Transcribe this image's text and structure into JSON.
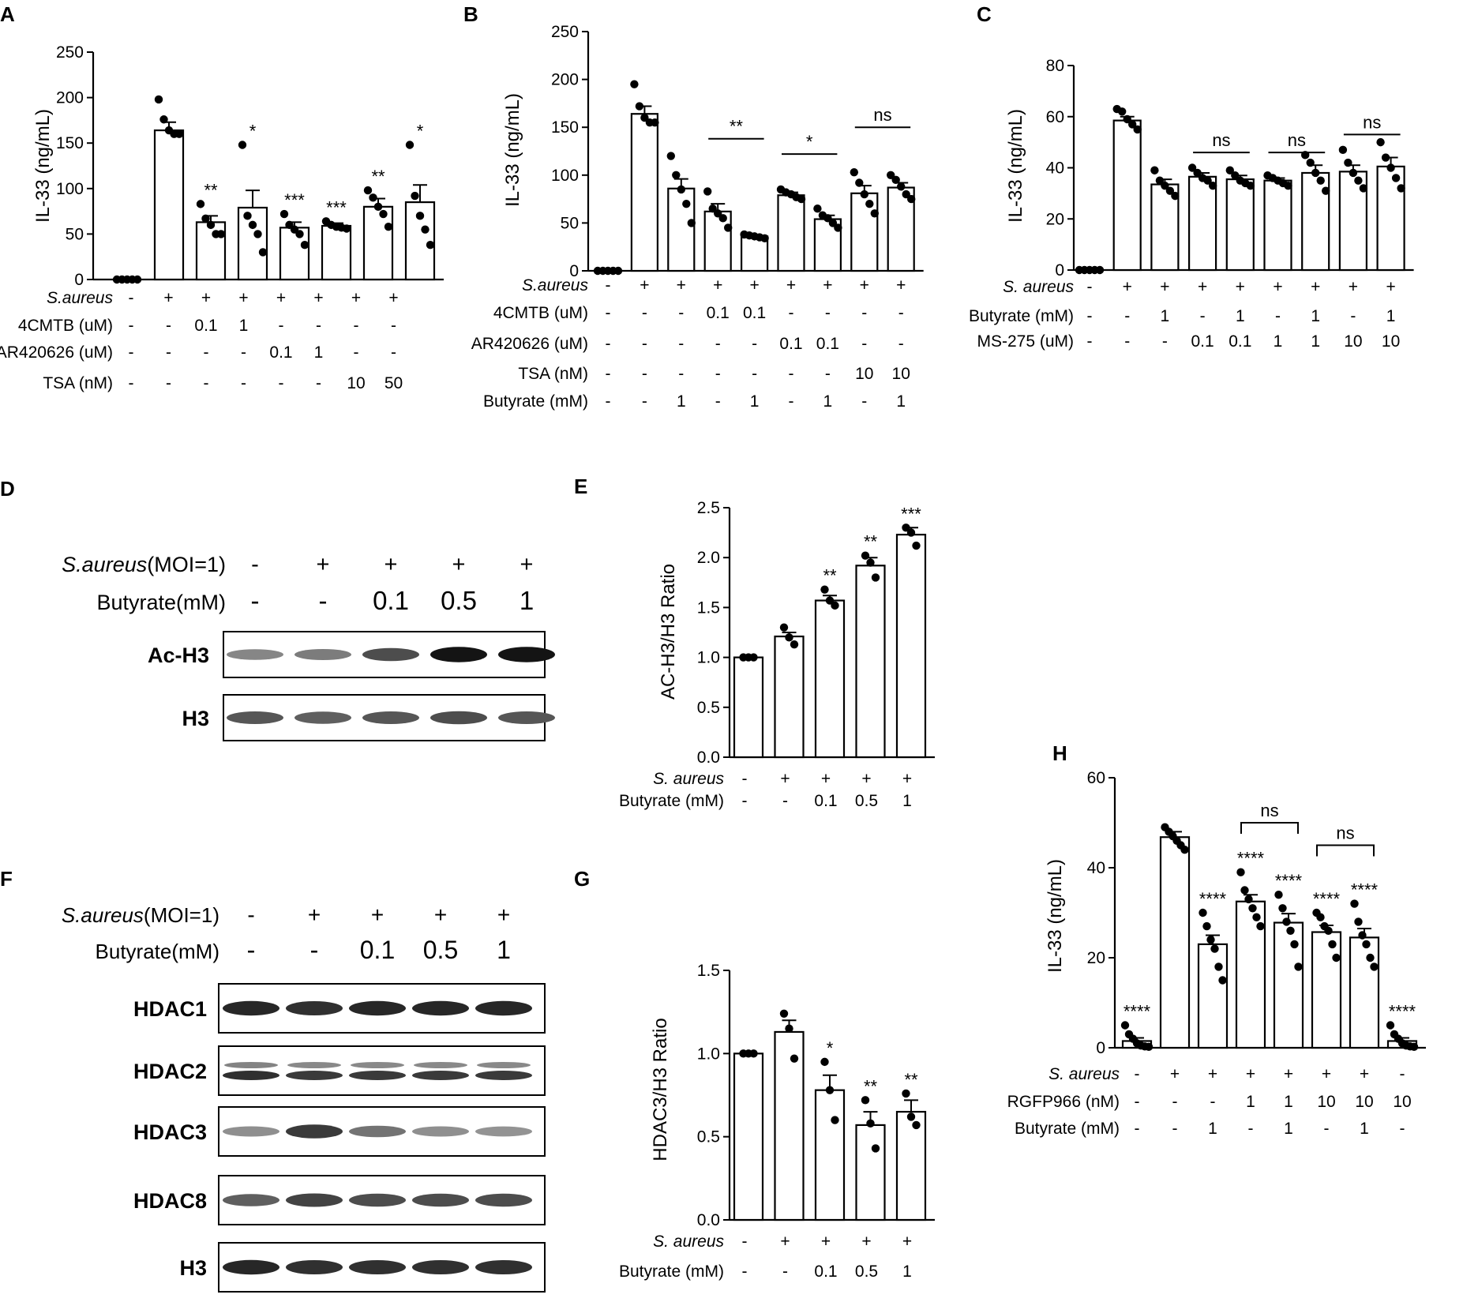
{
  "chart_data": [
    {
      "panel": "A",
      "type": "bar",
      "ylabel": "IL-33 (ng/mL)",
      "ylim": [
        0,
        250
      ],
      "yticks": [
        "0",
        "50",
        "100",
        "150",
        "200",
        "250"
      ],
      "values": [
        0,
        164,
        63,
        79,
        57,
        59,
        80,
        85
      ],
      "errors": [
        0,
        9,
        7,
        19,
        6,
        3,
        9,
        19
      ],
      "points": [
        [
          0,
          0,
          0,
          0,
          0
        ],
        [
          198,
          176,
          164,
          160,
          160
        ],
        [
          83,
          67,
          60,
          50,
          50
        ],
        [
          148,
          70,
          60,
          50,
          30
        ],
        [
          72,
          60,
          55,
          50,
          38
        ],
        [
          64,
          60,
          58,
          57,
          56
        ],
        [
          98,
          90,
          80,
          72,
          58
        ],
        [
          148,
          92,
          70,
          55,
          38
        ]
      ],
      "sig": [
        "",
        "",
        "**",
        "*",
        "***",
        "***",
        "**",
        "*"
      ],
      "brackets": [],
      "conditions": [
        {
          "label": "S.aureus",
          "italic": true,
          "values": [
            "-",
            "+",
            "+",
            "+",
            "+",
            "+",
            "+",
            "+"
          ]
        },
        {
          "label": "4CMTB (uM)",
          "italic": false,
          "values": [
            "-",
            "-",
            "0.1",
            "1",
            "-",
            "-",
            "-",
            "-"
          ]
        },
        {
          "label": "AR420626 (uM)",
          "italic": false,
          "values": [
            "-",
            "-",
            "-",
            "-",
            "0.1",
            "1",
            "-",
            "-"
          ]
        },
        {
          "label": "TSA (nM)",
          "italic": false,
          "values": [
            "-",
            "-",
            "-",
            "-",
            "-",
            "-",
            "10",
            "50"
          ]
        }
      ]
    },
    {
      "panel": "B",
      "type": "bar",
      "ylabel": "IL-33 (ng/mL)",
      "ylim": [
        0,
        250
      ],
      "yticks": [
        "0",
        "50",
        "100",
        "150",
        "200",
        "250"
      ],
      "values": [
        0,
        164,
        86,
        62,
        36,
        79,
        54,
        81,
        87
      ],
      "errors": [
        0,
        8,
        10,
        8,
        2,
        3,
        4,
        8,
        5
      ],
      "points": [
        [
          0,
          0,
          0,
          0,
          0
        ],
        [
          195,
          172,
          160,
          155,
          155
        ],
        [
          120,
          100,
          85,
          70,
          50
        ],
        [
          83,
          65,
          60,
          55,
          45
        ],
        [
          38,
          37,
          36,
          35,
          34
        ],
        [
          85,
          82,
          80,
          77,
          75
        ],
        [
          65,
          58,
          55,
          50,
          45
        ],
        [
          103,
          92,
          80,
          70,
          60
        ],
        [
          100,
          95,
          88,
          80,
          75
        ]
      ],
      "sig": [
        "",
        "",
        "",
        "",
        "",
        "",
        "",
        "",
        ""
      ],
      "brackets": [
        {
          "from": 3,
          "to": 4,
          "text": "**",
          "y": 138
        },
        {
          "from": 5,
          "to": 6,
          "text": "*",
          "y": 122
        },
        {
          "from": 7,
          "to": 8,
          "text": "ns",
          "y": 150
        }
      ],
      "conditions": [
        {
          "label": "S.aureus",
          "italic": true,
          "values": [
            "-",
            "+",
            "+",
            "+",
            "+",
            "+",
            "+",
            "+",
            "+"
          ]
        },
        {
          "label": "4CMTB (uM)",
          "italic": false,
          "values": [
            "-",
            "-",
            "-",
            "0.1",
            "0.1",
            "-",
            "-",
            "-",
            "-"
          ]
        },
        {
          "label": "AR420626 (uM)",
          "italic": false,
          "values": [
            "-",
            "-",
            "-",
            "-",
            "-",
            "0.1",
            "0.1",
            "-",
            "-"
          ]
        },
        {
          "label": "TSA (nM)",
          "italic": false,
          "values": [
            "-",
            "-",
            "-",
            "-",
            "-",
            "-",
            "-",
            "10",
            "10"
          ]
        },
        {
          "label": "Butyrate (mM)",
          "italic": false,
          "values": [
            "-",
            "-",
            "1",
            "-",
            "1",
            "-",
            "1",
            "-",
            "1"
          ]
        }
      ]
    },
    {
      "panel": "C",
      "type": "bar",
      "ylabel": "IL-33 (ng/mL)",
      "ylim": [
        0,
        80
      ],
      "yticks": [
        "0",
        "20",
        "40",
        "60",
        "80"
      ],
      "values": [
        0,
        58.5,
        33.5,
        36.5,
        35.5,
        35,
        38,
        38.5,
        40.5
      ],
      "errors": [
        0,
        1.5,
        2,
        1.5,
        1.5,
        1,
        3,
        2.5,
        3.5
      ],
      "points": [
        [
          0,
          0,
          0,
          0,
          0
        ],
        [
          63,
          62,
          59,
          57,
          55
        ],
        [
          39,
          35,
          33,
          31,
          29
        ],
        [
          40,
          38,
          36,
          35,
          33
        ],
        [
          39,
          37,
          35,
          34,
          33
        ],
        [
          37,
          36,
          35,
          34,
          33
        ],
        [
          45,
          42,
          38,
          35,
          31
        ],
        [
          47,
          42,
          38,
          35,
          32
        ],
        [
          50,
          44,
          40,
          36,
          32
        ]
      ],
      "sig": [
        "",
        "",
        "",
        "",
        "",
        "",
        "",
        "",
        ""
      ],
      "brackets": [
        {
          "from": 3,
          "to": 4,
          "text": "ns",
          "y": 46
        },
        {
          "from": 5,
          "to": 6,
          "text": "ns",
          "y": 46
        },
        {
          "from": 7,
          "to": 8,
          "text": "ns",
          "y": 53
        }
      ],
      "conditions": [
        {
          "label": "S. aureus",
          "italic": true,
          "values": [
            "-",
            "+",
            "+",
            "+",
            "+",
            "+",
            "+",
            "+",
            "+"
          ]
        },
        {
          "label": "Butyrate (mM)",
          "italic": false,
          "values": [
            "-",
            "-",
            "1",
            "-",
            "1",
            "-",
            "1",
            "-",
            "1"
          ]
        },
        {
          "label": "MS-275 (uM)",
          "italic": false,
          "values": [
            "-",
            "-",
            "-",
            "0.1",
            "0.1",
            "1",
            "1",
            "10",
            "10"
          ]
        }
      ]
    },
    {
      "panel": "E",
      "type": "bar",
      "ylabel": "AC-H3/H3 Ratio",
      "ylim": [
        0,
        2.5
      ],
      "yticks": [
        "0.0",
        "0.5",
        "1.0",
        "1.5",
        "2.0",
        "2.5"
      ],
      "values": [
        1.0,
        1.21,
        1.57,
        1.92,
        2.23
      ],
      "errors": [
        0,
        0.04,
        0.05,
        0.08,
        0.07
      ],
      "points": [
        [
          1,
          1,
          1
        ],
        [
          1.3,
          1.2,
          1.13
        ],
        [
          1.68,
          1.57,
          1.52
        ],
        [
          2.02,
          1.95,
          1.8
        ],
        [
          2.3,
          2.25,
          2.12
        ]
      ],
      "sig": [
        "",
        "",
        "**",
        "**",
        "***"
      ],
      "brackets": [],
      "conditions": [
        {
          "label": "S. aureus",
          "italic": true,
          "values": [
            "-",
            "+",
            "+",
            "+",
            "+"
          ]
        },
        {
          "label": "Butyrate (mM)",
          "italic": false,
          "values": [
            "-",
            "-",
            "0.1",
            "0.5",
            "1"
          ]
        }
      ]
    },
    {
      "panel": "G",
      "type": "bar",
      "ylabel": "HDAC3/H3 Ratio",
      "ylim": [
        0,
        1.5
      ],
      "yticks": [
        "0.0",
        "0.5",
        "1.0",
        "1.5"
      ],
      "values": [
        1.0,
        1.13,
        0.78,
        0.57,
        0.65
      ],
      "errors": [
        0,
        0.07,
        0.09,
        0.08,
        0.07
      ],
      "points": [
        [
          1,
          1,
          1
        ],
        [
          1.24,
          1.15,
          0.97
        ],
        [
          0.95,
          0.78,
          0.6
        ],
        [
          0.72,
          0.58,
          0.43
        ],
        [
          0.76,
          0.62,
          0.57
        ]
      ],
      "sig": [
        "",
        "",
        "*",
        "**",
        "**"
      ],
      "brackets": [],
      "conditions": [
        {
          "label": "S. aureus",
          "italic": true,
          "values": [
            "-",
            "+",
            "+",
            "+",
            "+"
          ]
        },
        {
          "label": "Butyrate (mM)",
          "italic": false,
          "values": [
            "-",
            "-",
            "0.1",
            "0.5",
            "1"
          ]
        }
      ]
    },
    {
      "panel": "H",
      "type": "bar",
      "ylabel": "IL-33 (ng/mL)",
      "ylim": [
        0,
        60
      ],
      "yticks": [
        "0",
        "20",
        "40",
        "60"
      ],
      "values": [
        1.5,
        46.8,
        23,
        32.5,
        27.8,
        25.7,
        24.5,
        1.5
      ],
      "errors": [
        0.7,
        1.2,
        2,
        1.5,
        2,
        1.5,
        2,
        0.7
      ],
      "points": [
        [
          5,
          3,
          2,
          1,
          0.5,
          0.3,
          0.2
        ],
        [
          49,
          48,
          47,
          46,
          45,
          44
        ],
        [
          30,
          27,
          24,
          22,
          18,
          15
        ],
        [
          39,
          35,
          33,
          31,
          29,
          27
        ],
        [
          34,
          31,
          28,
          26,
          23,
          18
        ],
        [
          30,
          29,
          27,
          26,
          23,
          20
        ],
        [
          32,
          28,
          25,
          23,
          20,
          18
        ],
        [
          5,
          3,
          2,
          1,
          0.5,
          0.3,
          0.2
        ]
      ],
      "sig": [
        "****",
        "",
        "****",
        "****",
        "****",
        "****",
        "****",
        "****"
      ],
      "brackets": [
        {
          "from": 3,
          "to": 4,
          "text": "ns",
          "y": 50,
          "hooks": true
        },
        {
          "from": 5,
          "to": 6,
          "text": "ns",
          "y": 45,
          "hooks": true
        }
      ],
      "conditions": [
        {
          "label": "S. aureus",
          "italic": true,
          "values": [
            "-",
            "+",
            "+",
            "+",
            "+",
            "+",
            "+",
            "-"
          ]
        },
        {
          "label": "RGFP966 (nM)",
          "italic": false,
          "values": [
            "-",
            "-",
            "-",
            "1",
            "1",
            "10",
            "10",
            "10"
          ]
        },
        {
          "label": "Butyrate (mM)",
          "italic": false,
          "values": [
            "-",
            "-",
            "1",
            "-",
            "1",
            "-",
            "1",
            "-"
          ]
        }
      ]
    }
  ],
  "blots": [
    {
      "panel": "D",
      "conditions": [
        {
          "prefix": "S.aureus",
          "suffix": "(MOI=1)",
          "values": [
            "-",
            "+",
            "+",
            "+",
            "+"
          ]
        },
        {
          "prefix": "",
          "suffix": "Butyrate(mM)",
          "values": [
            "-",
            "-",
            "0.1",
            "0.5",
            "1"
          ]
        }
      ],
      "bands": [
        {
          "label": "Ac-H3",
          "intensity": [
            0.35,
            0.4,
            0.65,
            0.95,
            0.95
          ],
          "double": false
        },
        {
          "label": "H3",
          "intensity": [
            0.6,
            0.55,
            0.6,
            0.65,
            0.6
          ],
          "double": false
        }
      ]
    },
    {
      "panel": "F",
      "conditions": [
        {
          "prefix": "S.aureus",
          "suffix": "(MOI=1)",
          "values": [
            "-",
            "+",
            "+",
            "+",
            "+"
          ]
        },
        {
          "prefix": "",
          "suffix": "Butyrate(mM)",
          "values": [
            "-",
            "-",
            "0.1",
            "0.5",
            "1"
          ]
        }
      ],
      "bands": [
        {
          "label": "HDAC1",
          "intensity": [
            0.85,
            0.8,
            0.85,
            0.85,
            0.85
          ],
          "double": false
        },
        {
          "label": "HDAC2",
          "intensity": [
            0.8,
            0.75,
            0.75,
            0.75,
            0.75
          ],
          "double": true
        },
        {
          "label": "HDAC3",
          "intensity": [
            0.3,
            0.75,
            0.45,
            0.3,
            0.28
          ],
          "double": false
        },
        {
          "label": "HDAC8",
          "intensity": [
            0.55,
            0.7,
            0.65,
            0.65,
            0.65
          ],
          "double": false
        },
        {
          "label": "H3",
          "intensity": [
            0.85,
            0.8,
            0.8,
            0.8,
            0.8
          ],
          "double": false
        }
      ]
    }
  ],
  "panel_letters": [
    "A",
    "B",
    "C",
    "D",
    "E",
    "F",
    "G",
    "H"
  ]
}
